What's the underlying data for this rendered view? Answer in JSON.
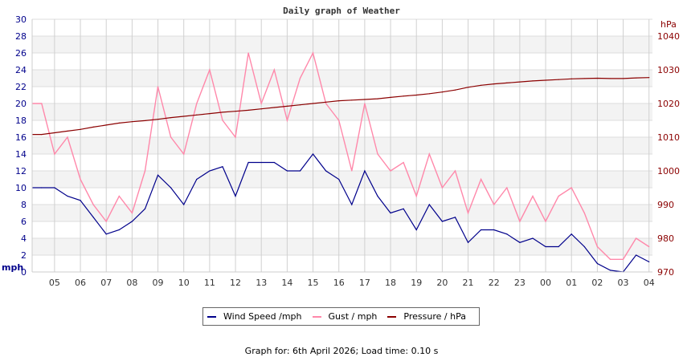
{
  "chart_data": {
    "type": "line",
    "title": "Daily graph of Weather",
    "left_axis": {
      "label": "mph",
      "range": [
        0,
        30
      ],
      "ticks": [
        0,
        2,
        4,
        6,
        8,
        10,
        12,
        14,
        16,
        18,
        20,
        22,
        24,
        26,
        28,
        30
      ],
      "color": "#00008b"
    },
    "right_axis": {
      "label": "hPa",
      "range": [
        970,
        1045
      ],
      "ticks": [
        970,
        980,
        990,
        1000,
        1010,
        1020,
        1030,
        1040
      ],
      "color": "#8b0000"
    },
    "x_range": [
      "2026-04-05T04:08",
      "2026-04-06T04:08"
    ],
    "x_tick_labels": [
      "05",
      "06",
      "07",
      "08",
      "09",
      "10",
      "11",
      "12",
      "13",
      "14",
      "15",
      "16",
      "17",
      "18",
      "19",
      "20",
      "21",
      "22",
      "23",
      "00",
      "01",
      "02",
      "03",
      "04"
    ],
    "grid": true,
    "legend_placement": "bottom",
    "times": [
      "04:30",
      "05:00",
      "05:30",
      "06:00",
      "06:30",
      "07:00",
      "07:30",
      "08:00",
      "08:30",
      "09:00",
      "09:30",
      "10:00",
      "10:30",
      "11:00",
      "11:30",
      "12:00",
      "12:30",
      "13:00",
      "13:30",
      "14:00",
      "14:30",
      "15:00",
      "15:30",
      "16:00",
      "16:30",
      "17:00",
      "17:30",
      "18:00",
      "18:30",
      "19:00",
      "19:30",
      "20:00",
      "20:30",
      "21:00",
      "21:30",
      "22:00",
      "22:30",
      "23:00",
      "23:30",
      "00:00",
      "00:30",
      "01:00",
      "01:30",
      "02:00",
      "02:30",
      "03:00",
      "03:30",
      "04:00"
    ],
    "series": [
      {
        "name": "Wind Speed /mph",
        "axis": "left",
        "color": "#00008b",
        "values": [
          10,
          10,
          9,
          8.5,
          6.5,
          4.5,
          5,
          6,
          7.5,
          11.5,
          10,
          8,
          11,
          12,
          12.5,
          9,
          13,
          13,
          13,
          12,
          12,
          14,
          12,
          11,
          8,
          12,
          9,
          7,
          7.5,
          5,
          8,
          6,
          6.5,
          3.5,
          5,
          5,
          4.5,
          3.5,
          4,
          3,
          3,
          4.5,
          3,
          1,
          0.2,
          0,
          2,
          1.2
        ]
      },
      {
        "name": "Gust / mph",
        "axis": "left",
        "color": "#ff88aa",
        "values": [
          20,
          14,
          16,
          11,
          8,
          6,
          9,
          7,
          12,
          22,
          16,
          14,
          20,
          24,
          18,
          16,
          26,
          20,
          24,
          18,
          23,
          26,
          20,
          18,
          12,
          20,
          14,
          12,
          13,
          9,
          14,
          10,
          12,
          7,
          11,
          8,
          10,
          6,
          9,
          6,
          9,
          10,
          7,
          3,
          1.5,
          1.5,
          4,
          3
        ]
      },
      {
        "name": "Pressure / hPa",
        "axis": "right",
        "color": "#8b0000",
        "values": [
          1010.8,
          1011.3,
          1011.8,
          1012.3,
          1013,
          1013.6,
          1014.2,
          1014.6,
          1014.9,
          1015.3,
          1015.8,
          1016.2,
          1016.6,
          1017,
          1017.4,
          1017.7,
          1018,
          1018.4,
          1018.8,
          1019.2,
          1019.6,
          1020,
          1020.4,
          1020.8,
          1021,
          1021.2,
          1021.4,
          1021.8,
          1022.2,
          1022.5,
          1022.9,
          1023.4,
          1024,
          1024.8,
          1025.4,
          1025.8,
          1026.1,
          1026.4,
          1026.7,
          1026.9,
          1027.1,
          1027.3,
          1027.4,
          1027.5,
          1027.4,
          1027.4,
          1027.6,
          1027.7
        ]
      }
    ]
  },
  "legend": {
    "items": [
      {
        "label": "Wind Speed /mph",
        "color": "#00008b"
      },
      {
        "label": "Gust / mph",
        "color": "#ff88aa"
      },
      {
        "label": "Pressure / hPa",
        "color": "#8b0000"
      }
    ]
  },
  "footer": {
    "text": "Graph for: 6th April 2026; Load time: 0.10 s"
  }
}
